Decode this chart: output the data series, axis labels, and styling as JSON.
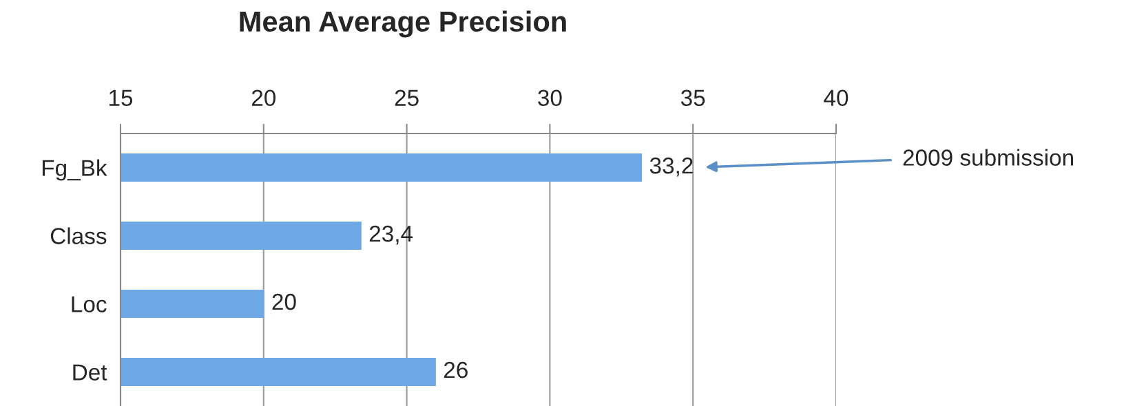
{
  "chart_data": {
    "type": "bar",
    "orientation": "horizontal",
    "title": "Mean Average Precision",
    "categories": [
      "Fg_Bk",
      "Class",
      "Loc",
      "Det"
    ],
    "values": [
      33.2,
      23.4,
      20,
      26
    ],
    "value_labels": [
      "33,2",
      "23,4",
      "20",
      "26"
    ],
    "color": "#6fa8e6",
    "xlim": [
      15,
      40
    ],
    "xticks": [
      15,
      20,
      25,
      30,
      35,
      40
    ],
    "grid": "x",
    "annotations": [
      "2009 submission"
    ]
  }
}
